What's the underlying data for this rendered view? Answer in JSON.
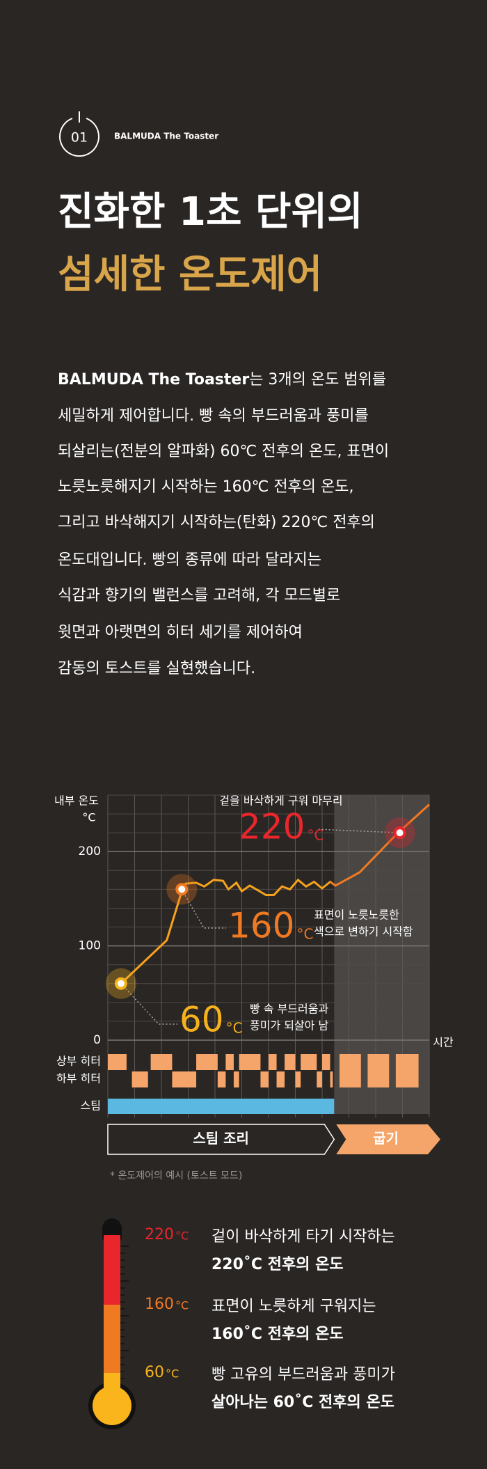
{
  "header": {
    "badge": "01",
    "brand": "BALMUDA The Toaster",
    "title": [
      "진화한 1초 단위의",
      "섬세한 온도제어"
    ]
  },
  "paragraph": {
    "lead": "BALMUDA The Toaster",
    "lines": [
      "는 3개의 온도 범위를",
      "세밀하게 제어합니다. 빵 속의 부드러움과 풍미를",
      "되살리는(전분의 알파화) 60℃ 전후의 온도, 표면이",
      "노릇노릇해지기 시작하는 160℃ 전후의 온도,",
      "그리고 바삭해지기 시작하는(탄화) 220℃ 전후의",
      "온도대입니다. 빵의 종류에 따라 달라지는",
      "식감과 향기의 밸런스를 고려해, 각 모드별로",
      "윗면과 아랫면의 히터 세기를 제어하여",
      "감동의 토스트를 실현했습니다."
    ]
  },
  "chart_data": {
    "type": "line",
    "y_label": [
      "내부 온도",
      "°C"
    ],
    "x_label": "시간",
    "unit": "°C",
    "color": "#f6a21c",
    "bake_color": "#f07a22",
    "x": [
      0.49,
      2.2,
      2.76,
      2.9,
      3.3,
      3.6,
      3.95,
      4.3,
      4.5,
      4.8,
      5.0,
      5.3,
      5.6,
      5.9,
      6.2,
      6.5,
      6.8,
      7.1,
      7.4,
      7.7,
      8.0,
      8.3,
      8.5,
      9.4,
      10.8,
      12.0
    ],
    "values": [
      60,
      106,
      158,
      166,
      167,
      163,
      170,
      169,
      160,
      167,
      158,
      164,
      159,
      154,
      154,
      163,
      160,
      170,
      163,
      168,
      161,
      168,
      164,
      178,
      219,
      250
    ],
    "xlim": [
      0,
      12
    ],
    "ylim": [
      0,
      260
    ],
    "yticks": [
      0,
      100,
      200
    ],
    "grid": true,
    "annotations": [
      {
        "value": 60,
        "x": 0.49,
        "color": "#f6b21c",
        "text": [
          "빵 속 부드러움과",
          "풍미가 되살아 남"
        ]
      },
      {
        "value": 160,
        "x": 2.76,
        "color": "#f07a22",
        "text": [
          "표면이 노릇노릇한",
          "색으로 변하기 시작함"
        ]
      },
      {
        "value": 220,
        "x": 10.9,
        "color": "#e8262b",
        "text": [
          "겉을 바삭하게 구워 마무리"
        ]
      }
    ],
    "rows": [
      "상부 히터",
      "하부 히터",
      "스팀"
    ],
    "phases": [
      {
        "label": "스팀 조리",
        "x": [
          0,
          8.45
        ]
      },
      {
        "label": "굽기",
        "x": [
          8.45,
          12
        ]
      }
    ],
    "footnote": "* 온도제어의 예시 (토스트 모드)"
  },
  "thermometer": {
    "unit": "°C",
    "items": [
      {
        "temp": 220,
        "color": "#e8262b",
        "lines": [
          "겉이 바삭하게 타기 시작하는",
          "220˚C 전후의 온도"
        ]
      },
      {
        "temp": 160,
        "color": "#f07a22",
        "lines": [
          "표면이 노릇하게 구워지는",
          "160˚C 전후의 온도"
        ]
      },
      {
        "temp": 60,
        "color": "#f9b51b",
        "lines": [
          "빵 고유의 부드러움과 풍미가",
          "살아나는 60˚C 전후의 온도"
        ]
      }
    ]
  }
}
